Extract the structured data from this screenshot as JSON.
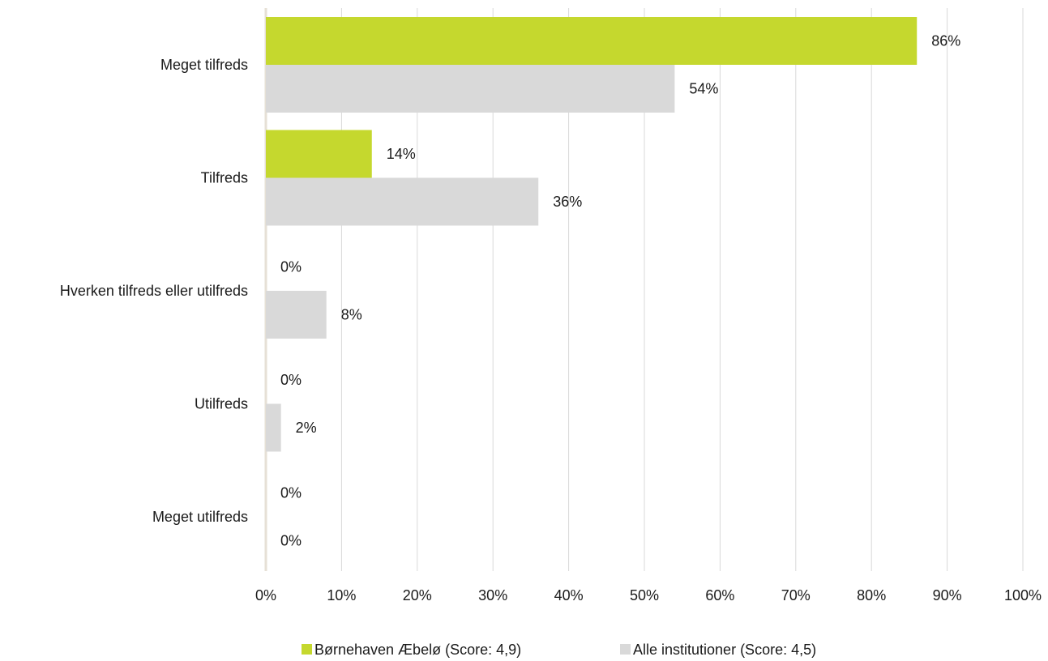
{
  "chart_data": {
    "type": "bar",
    "orientation": "horizontal",
    "categories": [
      "Meget tilfreds",
      "Tilfreds",
      "Hverken tilfreds eller utilfreds",
      "Utilfreds",
      "Meget utilfreds"
    ],
    "series": [
      {
        "name": "Børnehaven Æbelø (Score: 4,9)",
        "color": "#c5d82e",
        "values": [
          86,
          14,
          0,
          0,
          0
        ],
        "labels": [
          "86%",
          "14%",
          "0%",
          "0%",
          "0%"
        ]
      },
      {
        "name": "Alle institutioner (Score: 4,5)",
        "color": "#d9d9d9",
        "values": [
          54,
          36,
          8,
          2,
          0
        ],
        "labels": [
          "54%",
          "36%",
          "8%",
          "2%",
          "0%"
        ]
      }
    ],
    "xlim": [
      0,
      100
    ],
    "xticks": [
      "0%",
      "10%",
      "20%",
      "30%",
      "40%",
      "50%",
      "60%",
      "70%",
      "80%",
      "90%",
      "100%"
    ],
    "title": "",
    "xlabel": "",
    "ylabel": "",
    "grid": "vertical",
    "legend_position": "bottom"
  }
}
